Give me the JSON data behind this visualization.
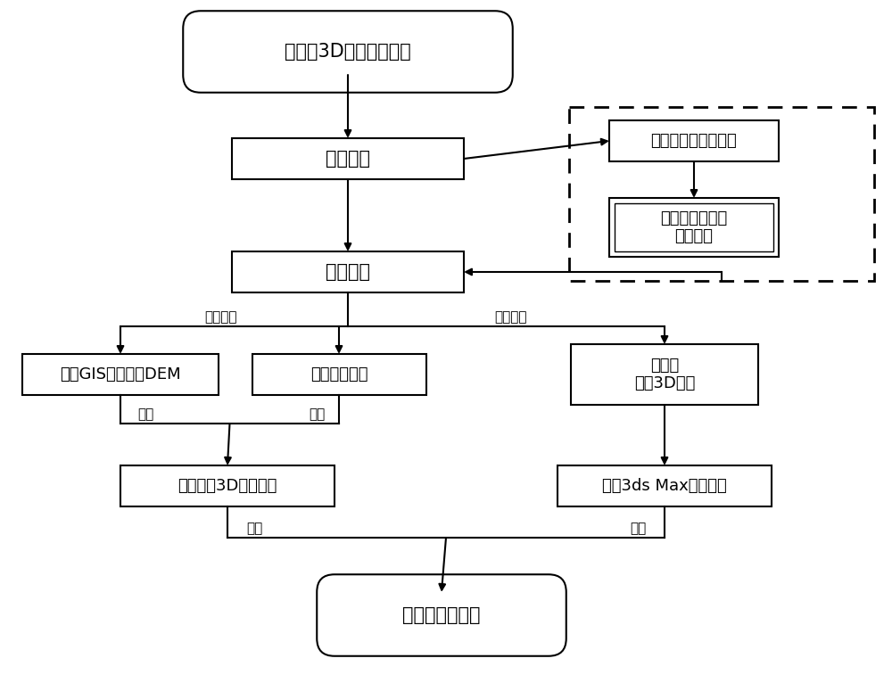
{
  "title": "变电站3D建模需求分析",
  "node_dc": "数据采集",
  "node_dp": "数据处理",
  "node_gis": "利用GIS技术制作DEM",
  "node_hd": "高清影像数据",
  "node_ss": "变电站\n表面3D模型",
  "node_terrain": "建立水库3D地景模型",
  "node_3dsmax": "导入3ds Max精细建模",
  "node_final": "变电站建模技术",
  "node_survey": "踏勘测区、规划路径",
  "node_lidar": "三维激光扫描仪\n采集数据",
  "label_extract1": "提取数据",
  "label_extract2": "提取数据",
  "label_merge1": "融合",
  "label_merge2": "融合",
  "label_combine1": "合并",
  "label_combine2": "合并",
  "bg_color": "#ffffff"
}
